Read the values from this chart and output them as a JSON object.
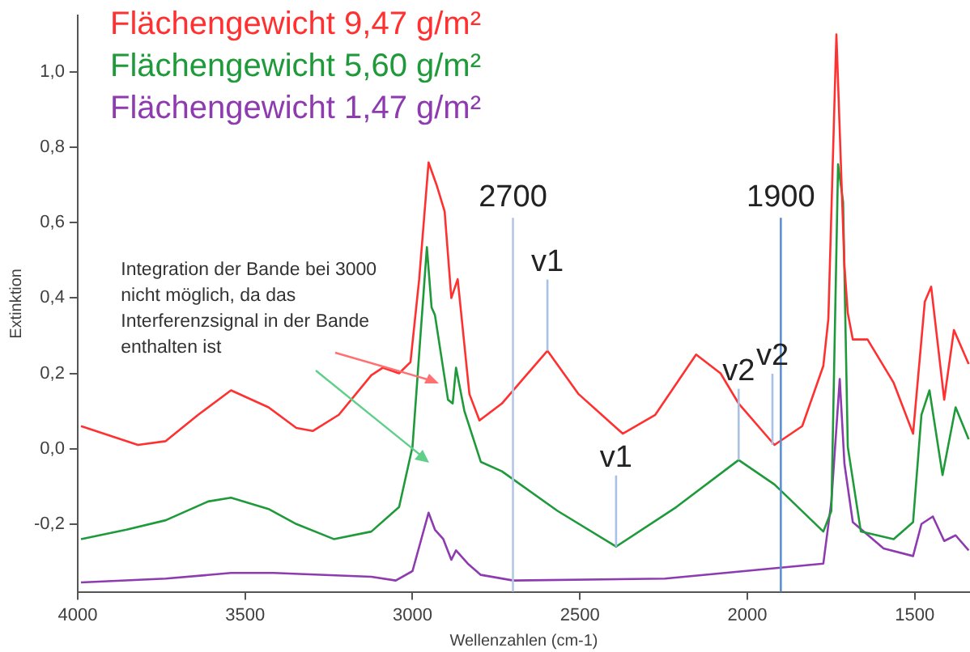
{
  "chart_data": {
    "type": "line",
    "xlabel": "Wellenzahlen (cm-1)",
    "ylabel": "Extinktion",
    "xlim": [
      4000,
      1335
    ],
    "xticks": [
      4000,
      3500,
      3000,
      2500,
      2000,
      1500
    ],
    "ylim": [
      -0.38,
      1.15
    ],
    "yticks": [
      {
        "value": -0.2,
        "label": "-0,2"
      },
      {
        "value": 0,
        "label": "0,0"
      },
      {
        "value": 0.2,
        "label": "0,2"
      },
      {
        "value": 0.4,
        "label": "0,4"
      },
      {
        "value": 0.6,
        "label": "0,6"
      },
      {
        "value": 0.8,
        "label": "0,8"
      },
      {
        "value": 1,
        "label": "1,0"
      }
    ],
    "grid": false,
    "legend": "top left",
    "marker": "none",
    "line_style": "solid",
    "series": [
      {
        "name": "Flächengewicht 9,47 g/m²",
        "color": "#ff3030",
        "x": [
          3990,
          3820,
          3737,
          3640,
          3542,
          3430,
          3347,
          3298,
          3220,
          3123,
          3089,
          3040,
          3006,
          2980,
          2952,
          2928,
          2904,
          2884,
          2865,
          2830,
          2800,
          2733,
          2665,
          2597,
          2504,
          2372,
          2275,
          2153,
          2080,
          2026,
          1919,
          1836,
          1773,
          1758,
          1734,
          1710,
          1700,
          1685,
          1641,
          1563,
          1505,
          1470,
          1451,
          1412,
          1383,
          1339
        ],
        "values": [
          0.06,
          0.01,
          0.02,
          0.09,
          0.155,
          0.11,
          0.055,
          0.047,
          0.09,
          0.195,
          0.215,
          0.2,
          0.23,
          0.45,
          0.76,
          0.7,
          0.63,
          0.4,
          0.45,
          0.145,
          0.075,
          0.12,
          0.19,
          0.26,
          0.145,
          0.04,
          0.09,
          0.25,
          0.2,
          0.12,
          0.01,
          0.06,
          0.22,
          0.345,
          1.1,
          0.485,
          0.36,
          0.29,
          0.29,
          0.175,
          0.04,
          0.39,
          0.43,
          0.13,
          0.315,
          0.225
        ]
      },
      {
        "name": "Flächengewicht 5,60 g/m²",
        "color": "#1f9a3a",
        "x": [
          3990,
          3854,
          3737,
          3610,
          3542,
          3430,
          3347,
          3235,
          3123,
          3040,
          3000,
          2977,
          2957,
          2943,
          2933,
          2894,
          2880,
          2870,
          2845,
          2796,
          2733,
          2567,
          2392,
          2212,
          2026,
          1919,
          1773,
          1749,
          1729,
          1714,
          1700,
          1661,
          1563,
          1505,
          1480,
          1456,
          1417,
          1378,
          1339
        ],
        "values": [
          -0.24,
          -0.215,
          -0.19,
          -0.14,
          -0.13,
          -0.16,
          -0.2,
          -0.24,
          -0.22,
          -0.155,
          0.005,
          0.29,
          0.535,
          0.375,
          0.355,
          0.13,
          0.12,
          0.215,
          0.1,
          -0.035,
          -0.06,
          -0.165,
          -0.26,
          -0.155,
          -0.03,
          -0.095,
          -0.22,
          -0.165,
          0.755,
          0.655,
          0.005,
          -0.22,
          -0.24,
          -0.195,
          0.09,
          0.155,
          -0.07,
          0.11,
          0.025
        ]
      },
      {
        "name": "Flächengewicht 1,47 g/m²",
        "color": "#8e3bb0",
        "x": [
          3990,
          3737,
          3542,
          3415,
          3123,
          3050,
          3000,
          2952,
          2933,
          2908,
          2884,
          2870,
          2835,
          2796,
          2699,
          2246,
          1773,
          1749,
          1724,
          1710,
          1685,
          1593,
          1505,
          1480,
          1446,
          1412,
          1378,
          1339
        ],
        "values": [
          -0.355,
          -0.345,
          -0.33,
          -0.33,
          -0.34,
          -0.35,
          -0.325,
          -0.17,
          -0.215,
          -0.24,
          -0.295,
          -0.27,
          -0.305,
          -0.335,
          -0.35,
          -0.345,
          -0.305,
          -0.14,
          0.185,
          -0.04,
          -0.195,
          -0.265,
          -0.285,
          -0.2,
          -0.18,
          -0.245,
          -0.23,
          -0.27
        ]
      }
    ],
    "ref_lines": [
      {
        "axis": "x",
        "value": 2700,
        "label": "2700",
        "color": "#b4c7e7"
      },
      {
        "axis": "x",
        "value": 1900,
        "label": "1900",
        "color": "#5b8fd6"
      }
    ],
    "annotations": [
      {
        "text": "Integration der Bande bei 3000 nicht möglich, da das Interferenzsignal in der Bande enthalten ist",
        "x": 2923,
        "y": 0.175
      },
      {
        "text": "v1",
        "x": 2597,
        "y": 0.26
      },
      {
        "text": "v1",
        "x": 2392,
        "y": -0.26
      },
      {
        "text": "v2",
        "x": 2026,
        "y": -0.03
      },
      {
        "text": "v2",
        "x": 1925,
        "y": 0.01
      }
    ]
  }
}
